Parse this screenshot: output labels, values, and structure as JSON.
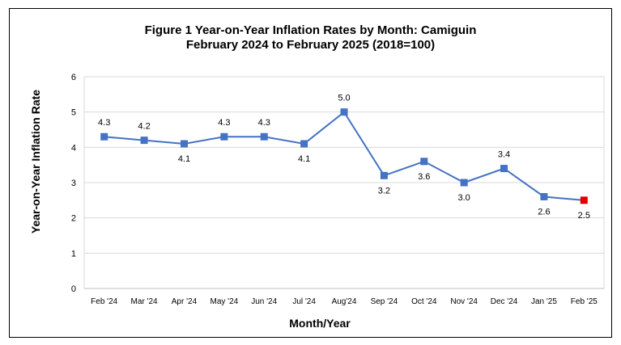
{
  "chart_data": {
    "type": "line",
    "title": "Figure 1  Year-on-Year Inflation Rates by Month: Camiguin",
    "subtitle": "February 2024 to February 2025 (2018=100)",
    "xlabel": "Month/Year",
    "ylabel": "Year-on-Year Inflation Rate",
    "categories": [
      "Feb '24",
      "Mar '24",
      "Apr '24",
      "May '24",
      "Jun '24",
      "Jul '24",
      "Aug'24",
      "Sep '24",
      "Oct '24",
      "Nov '24",
      "Dec '24",
      "Jan '25",
      "Feb '25"
    ],
    "values": [
      4.3,
      4.2,
      4.1,
      4.3,
      4.3,
      4.1,
      5.0,
      3.2,
      3.6,
      3.0,
      3.4,
      2.6,
      2.5
    ],
    "data_labels": [
      "4.3",
      "4.2",
      "4.1",
      "4.3",
      "4.3",
      "4.1",
      "5.0",
      "3.2",
      "3.6",
      "3.0",
      "3.4",
      "2.6",
      "2.5"
    ],
    "label_position": [
      "above",
      "above",
      "below",
      "above",
      "above",
      "below",
      "above",
      "below",
      "below",
      "below",
      "above",
      "below",
      "below"
    ],
    "ylim": [
      0,
      6
    ],
    "yticks": [
      "0",
      "1",
      "2",
      "3",
      "4",
      "5",
      "6"
    ],
    "grid": "horizontal",
    "line_color": "#4472C4",
    "marker_color": "#4472C4",
    "highlight_color": "#E00000",
    "highlight_index": 12
  }
}
